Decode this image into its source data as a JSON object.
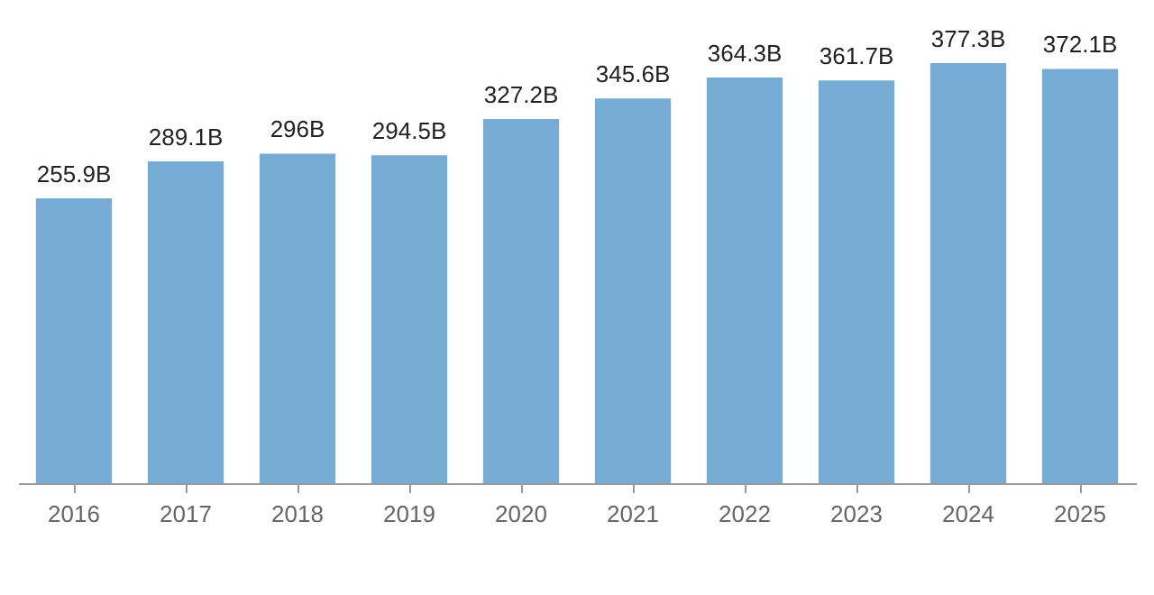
{
  "chart_data": {
    "type": "bar",
    "categories": [
      "2016",
      "2017",
      "2018",
      "2019",
      "2020",
      "2021",
      "2022",
      "2023",
      "2024",
      "2025"
    ],
    "values": [
      255.9,
      289.1,
      296,
      294.5,
      327.2,
      345.6,
      364.3,
      361.7,
      377.3,
      372.1
    ],
    "value_labels": [
      "255.9B",
      "289.1B",
      "296B",
      "294.5B",
      "327.2B",
      "345.6B",
      "364.3B",
      "361.7B",
      "377.3B",
      "372.1B"
    ],
    "color": "#76acd3",
    "grid": false
  }
}
